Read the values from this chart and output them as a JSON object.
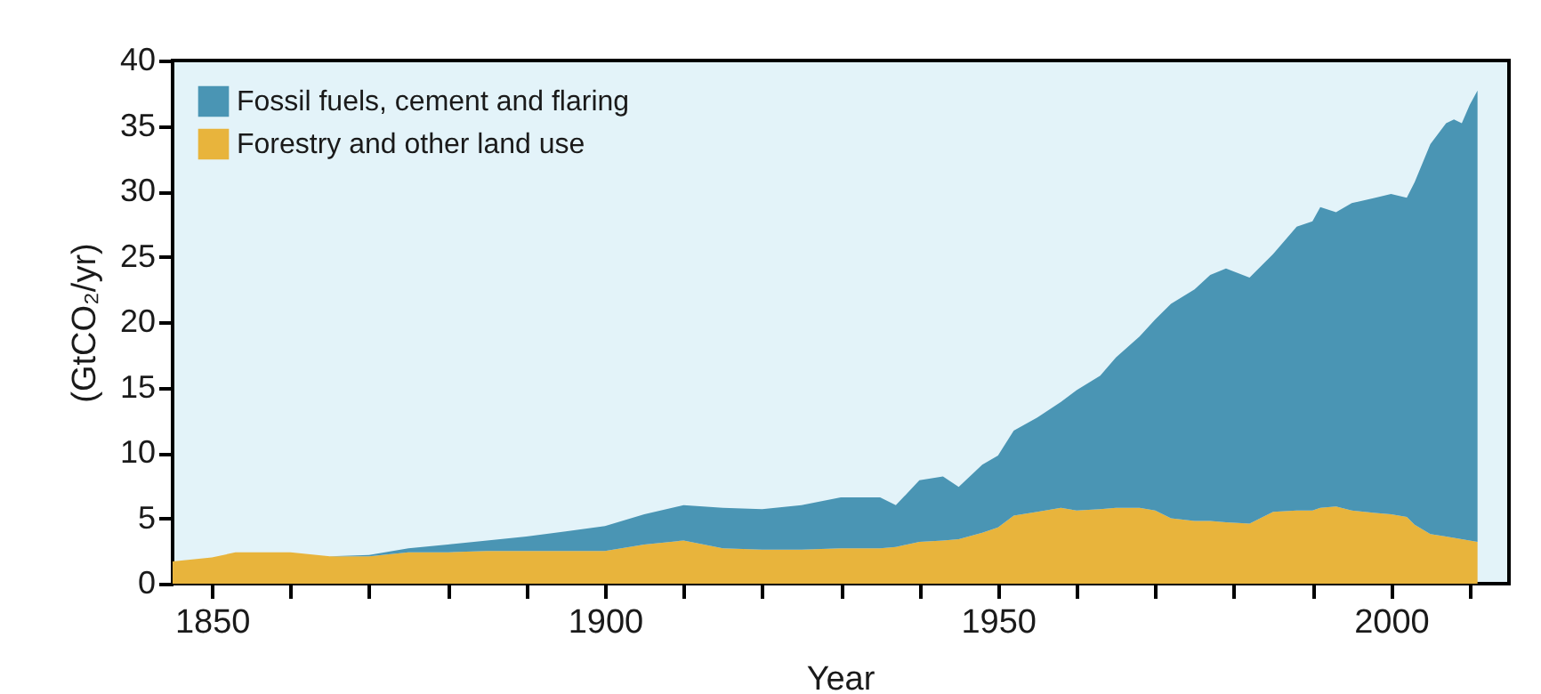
{
  "chart_data": {
    "type": "area",
    "stacked": true,
    "xlabel": "Year",
    "ylabel": "(GtCO₂/yr)",
    "x": [
      1845,
      1850,
      1853,
      1860,
      1865,
      1870,
      1875,
      1880,
      1885,
      1890,
      1895,
      1900,
      1905,
      1910,
      1915,
      1920,
      1925,
      1930,
      1935,
      1937,
      1940,
      1943,
      1945,
      1948,
      1950,
      1952,
      1955,
      1958,
      1960,
      1963,
      1965,
      1968,
      1970,
      1972,
      1975,
      1977,
      1979,
      1982,
      1985,
      1988,
      1990,
      1991,
      1993,
      1995,
      1998,
      2000,
      2002,
      2003,
      2005,
      2007,
      2008,
      2009,
      2010,
      2011
    ],
    "series": [
      {
        "name": "Forestry and other land use",
        "color": "#e8b43c",
        "values": [
          1.7,
          2.0,
          2.4,
          2.4,
          2.1,
          2.1,
          2.4,
          2.4,
          2.5,
          2.5,
          2.5,
          2.5,
          3.0,
          3.3,
          2.7,
          2.6,
          2.6,
          2.7,
          2.7,
          2.8,
          3.2,
          3.3,
          3.4,
          3.9,
          4.3,
          5.2,
          5.5,
          5.8,
          5.6,
          5.7,
          5.8,
          5.8,
          5.6,
          5.0,
          4.8,
          4.8,
          4.7,
          4.6,
          5.5,
          5.6,
          5.6,
          5.8,
          5.9,
          5.6,
          5.4,
          5.3,
          5.1,
          4.5,
          3.8,
          3.6,
          3.5,
          3.4,
          3.3,
          3.2
        ]
      },
      {
        "name": "Fossil fuels, cement and flaring",
        "color": "#4a95b4",
        "values": [
          0,
          0,
          0,
          0,
          0,
          0.1,
          0.3,
          0.6,
          0.8,
          1.1,
          1.5,
          1.9,
          2.3,
          2.7,
          3.1,
          3.1,
          3.4,
          3.9,
          3.9,
          3.2,
          4.7,
          4.9,
          4.0,
          5.2,
          5.5,
          6.5,
          7.2,
          8.1,
          9.2,
          10.2,
          11.5,
          13.1,
          14.6,
          16.4,
          17.7,
          18.8,
          19.4,
          18.8,
          19.7,
          21.7,
          22.1,
          23.0,
          22.5,
          23.5,
          24.1,
          24.5,
          24.4,
          26.2,
          29.8,
          31.6,
          32.0,
          31.8,
          33.3,
          34.5
        ]
      }
    ],
    "xlim": [
      1845,
      2015
    ],
    "xticks": [
      1850,
      {
        "value": 1860,
        "label": null
      },
      {
        "value": 1870,
        "label": null
      },
      {
        "value": 1880,
        "label": null
      },
      {
        "value": 1890,
        "label": null
      },
      1900,
      {
        "value": 1910,
        "label": null
      },
      {
        "value": 1920,
        "label": null
      },
      {
        "value": 1930,
        "label": null
      },
      {
        "value": 1940,
        "label": null
      },
      1950,
      {
        "value": 1960,
        "label": null
      },
      {
        "value": 1970,
        "label": null
      },
      {
        "value": 1980,
        "label": null
      },
      {
        "value": 1990,
        "label": null
      },
      2000,
      {
        "value": 2010,
        "label": null
      }
    ],
    "ylim": [
      0,
      40
    ],
    "yticks": [
      0,
      5,
      10,
      15,
      20,
      25,
      30,
      35,
      40
    ],
    "grid": false,
    "legend": "top left"
  }
}
